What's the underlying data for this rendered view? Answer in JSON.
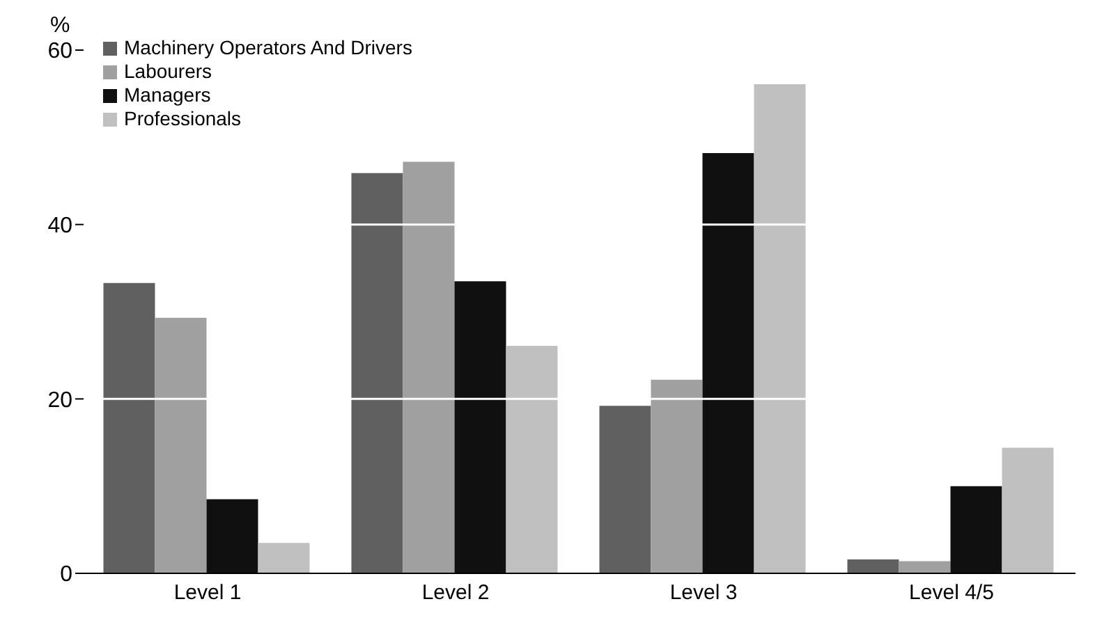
{
  "chart_data": {
    "type": "bar",
    "ylabel": "%",
    "categories": [
      "Level 1",
      "Level 2",
      "Level 3",
      "Level 4/5"
    ],
    "series": [
      {
        "name": "Machinery Operators And Drivers",
        "color": "#606060",
        "values": [
          33.3,
          45.9,
          19.2,
          1.6
        ]
      },
      {
        "name": "Labourers",
        "color": "#a0a0a0",
        "values": [
          29.3,
          47.2,
          22.2,
          1.4
        ]
      },
      {
        "name": "Managers",
        "color": "#101010",
        "values": [
          8.5,
          33.5,
          48.2,
          10
        ]
      },
      {
        "name": "Professionals",
        "color": "#c0c0c0",
        "values": [
          3.5,
          26.1,
          56.1,
          14.4
        ]
      }
    ],
    "ylim": [
      0,
      60
    ],
    "yticks": [
      0,
      20,
      40,
      60
    ],
    "grid": "y",
    "legend": "top left"
  }
}
